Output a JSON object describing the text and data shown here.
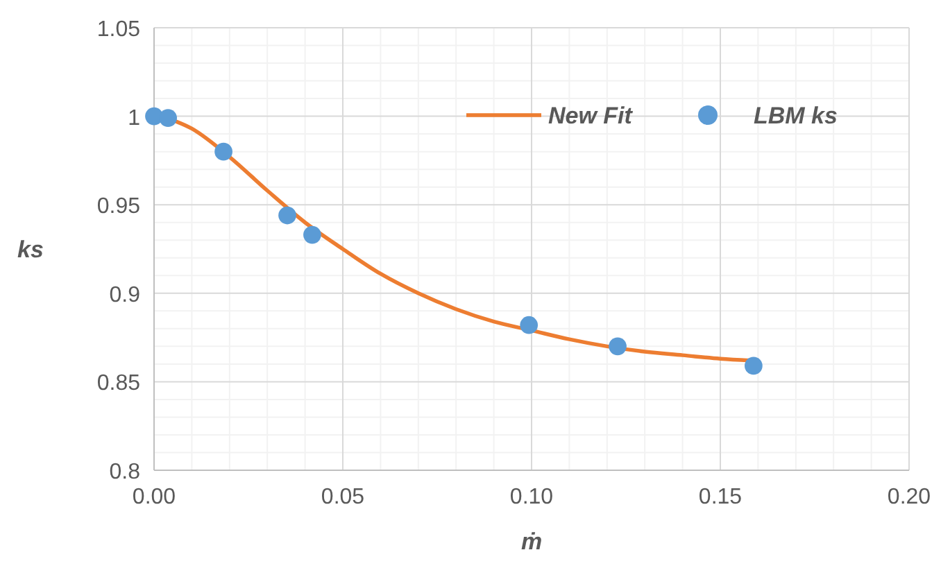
{
  "chart_data": {
    "type": "scatter",
    "xlabel": "ṁ",
    "ylabel": "ks",
    "xlim": [
      0,
      0.2
    ],
    "ylim": [
      0.8,
      1.05
    ],
    "xticks": [
      {
        "value": 0,
        "label": "0.00"
      },
      {
        "value": 0.05,
        "label": "0.05"
      },
      {
        "value": 0.1,
        "label": "0.10"
      },
      {
        "value": 0.15,
        "label": "0.15"
      },
      {
        "value": 0.2,
        "label": "0.20"
      }
    ],
    "yticks": [
      0.8,
      0.85,
      0.9,
      0.95,
      1,
      1.05
    ],
    "grid": true,
    "legend": "top right",
    "marker": "circle",
    "series": [
      {
        "name": "New Fit",
        "type": "line",
        "color": "#ed7d31",
        "line_style": "solid",
        "marker": "none",
        "x": [
          0.002,
          0.01,
          0.02,
          0.03,
          0.04,
          0.05,
          0.06,
          0.07,
          0.08,
          0.09,
          0.1,
          0.11,
          0.12,
          0.13,
          0.14,
          0.15,
          0.158
        ],
        "values": [
          1.0,
          0.993,
          0.977,
          0.958,
          0.94,
          0.925,
          0.911,
          0.9,
          0.891,
          0.884,
          0.879,
          0.874,
          0.87,
          0.867,
          0.865,
          0.863,
          0.862
        ]
      },
      {
        "name": "LBM ks",
        "color": "#5b9bd5",
        "x": [
          0,
          0.0037,
          0.0184,
          0.0353,
          0.0419,
          0.0993,
          0.1228,
          0.1588
        ],
        "values": [
          1.0,
          0.999,
          0.98,
          0.944,
          0.933,
          0.882,
          0.87,
          0.859
        ]
      }
    ]
  }
}
